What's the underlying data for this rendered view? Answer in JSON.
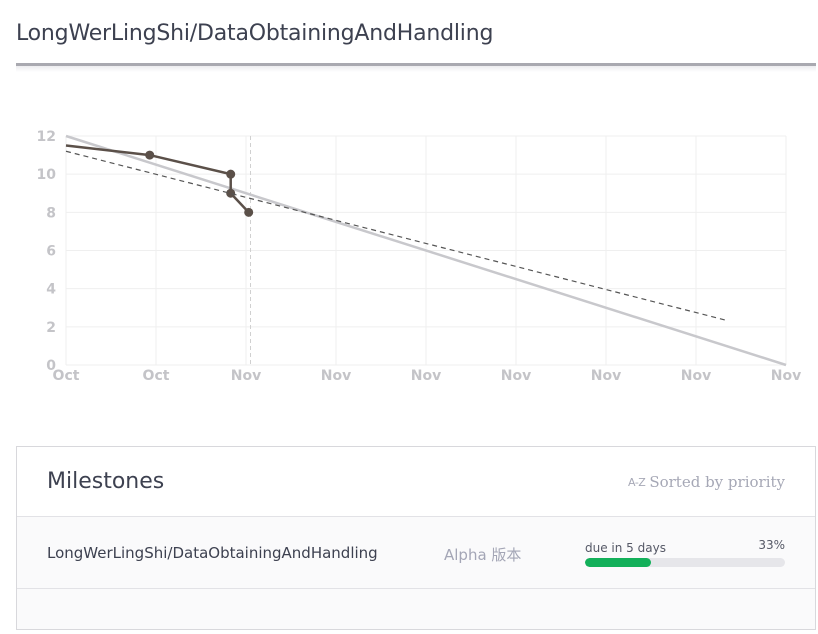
{
  "header": {
    "repo_title": "LongWerLingShi/DataObtainingAndHandling"
  },
  "chart_data": {
    "type": "line",
    "x_ticks": [
      "Oct",
      "Oct",
      "Nov",
      "Nov",
      "Nov",
      "Nov",
      "Nov",
      "Nov",
      "Nov"
    ],
    "y_ticks": [
      "0",
      "2",
      "4",
      "6",
      "8",
      "10",
      "12"
    ],
    "ylim": [
      0,
      12
    ],
    "grid": true,
    "series": [
      {
        "role": "ideal",
        "style": "solid-light",
        "color": "#c8c8cc",
        "points": [
          [
            0,
            12
          ],
          [
            8,
            0
          ]
        ]
      },
      {
        "role": "actual",
        "style": "solid-dark-markers",
        "color": "#5b5049",
        "points": [
          [
            0,
            11.5
          ],
          [
            0.93,
            11
          ],
          [
            1.83,
            10
          ],
          [
            1.83,
            9
          ],
          [
            2.03,
            8
          ]
        ]
      },
      {
        "role": "trend",
        "style": "dashed",
        "color": "#555555",
        "points": [
          [
            0,
            11.2
          ],
          [
            7.33,
            2.35
          ]
        ]
      }
    ],
    "today_x": 2.05
  },
  "milestones": {
    "title": "Milestones",
    "sort_icon": "a-z-sort-icon",
    "sort_icon_text": "A-Z",
    "sort_label": "Sorted by priority",
    "items": [
      {
        "name": "LongWerLingShi/DataObtainingAndHandling",
        "tag": "Alpha 版本",
        "due": "due in 5 days",
        "percent_label": "33%",
        "progress": 0.33
      }
    ]
  },
  "colors": {
    "progress": "#13b05a",
    "actual_line": "#5b5049",
    "ideal_line": "#c8c8cc"
  }
}
